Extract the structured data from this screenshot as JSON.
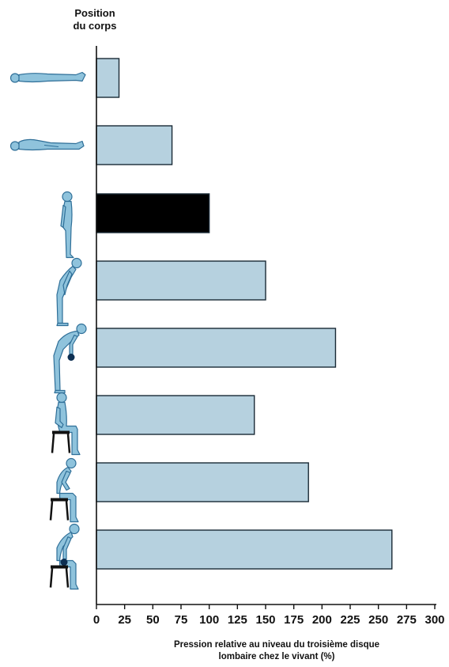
{
  "header": {
    "line1": "Position",
    "line2": "du corps"
  },
  "chart_data": {
    "type": "bar",
    "orientation": "horizontal",
    "title": "",
    "ylabel": "Position du corps",
    "xlabel_line1": "Pression relative au niveau du troisième disque",
    "xlabel_line2": "lombaire chez le vivant (%)",
    "xlim": [
      0,
      300
    ],
    "xticks": [
      "0",
      "25",
      "50",
      "75",
      "100",
      "125",
      "150",
      "175",
      "200",
      "225",
      "250",
      "275",
      "300"
    ],
    "grid": false,
    "categories": [
      "lying-supine-icon",
      "lying-side-icon",
      "standing-icon",
      "standing-bent-forward-icon",
      "standing-bent-lifting-weight-icon",
      "sitting-upright-icon",
      "sitting-bent-forward-icon",
      "sitting-bent-lifting-weight-icon"
    ],
    "values": [
      20,
      67,
      100,
      150,
      212,
      140,
      188,
      262
    ],
    "colors": {
      "bar_fill": "#b6d1df",
      "reference_bar_fill": "#000000",
      "bar_stroke": "#1a2a36",
      "figure_fill": "#8fc3dc",
      "figure_stroke": "#2f6f98",
      "seat": "#111111",
      "weight": "#0d2f52"
    },
    "reference_index": 2
  }
}
